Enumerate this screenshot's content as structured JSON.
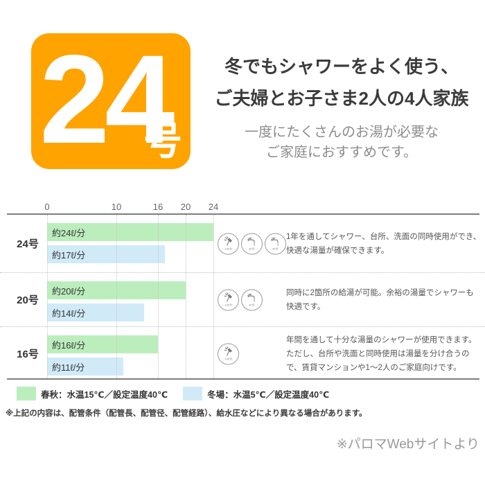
{
  "badge": {
    "number": "24",
    "suffix": "号",
    "color": "#ffa300"
  },
  "header": {
    "title_line1": "冬でもシャワーをよく使う、",
    "title_line2": "ご夫婦とお子さま2人の4人家族",
    "subtitle_line1": "一度にたくさんのお湯が必要な",
    "subtitle_line2": "ご家庭におすすめです。"
  },
  "chart_data": {
    "type": "bar",
    "orientation": "horizontal",
    "title": "",
    "xlabel": "",
    "ylabel": "",
    "x_ticks": [
      0,
      10,
      16,
      20,
      24
    ],
    "xlim": [
      0,
      24
    ],
    "unit": "ℓ/分",
    "grid": "dotted-vertical",
    "legend_position": "bottom",
    "categories": [
      "24号",
      "20号",
      "16号"
    ],
    "series": [
      {
        "name": "春秋：水温15℃／設定温度40℃",
        "color": "#bceebd",
        "values": [
          24,
          20,
          16
        ],
        "bar_labels": [
          "約24ℓ/分",
          "約20ℓ/分",
          "約16ℓ/分"
        ]
      },
      {
        "name": "冬場：水温5℃／設定温度40℃",
        "color": "#d0eaf8",
        "values": [
          17,
          14,
          11
        ],
        "bar_labels": [
          "約17ℓ/分",
          "約14ℓ/分",
          "約11ℓ/分"
        ]
      }
    ]
  },
  "rows": [
    {
      "label": "24号",
      "icons": [
        "shower-icon",
        "faucet-icon",
        "faucet-icon"
      ],
      "description": "1年を通してシャワー、台所、洗面の同時使用ができ、快適な湯量が確保できます。"
    },
    {
      "label": "20号",
      "icons": [
        "shower-icon",
        "faucet-icon"
      ],
      "description": "同時に2箇所の給湯が可能。余裕の湯量でシャワーも快適です。"
    },
    {
      "label": "16号",
      "icons": [
        "shower-icon"
      ],
      "description": "年間を通して十分な湯量のシャワーが使用できます。ただし、台所や洗面と同時使用は湯量を分け合うので、賃貸マンションや1〜2人のご家庭向けです。"
    }
  ],
  "icon_labels": {
    "shower-icon": "10ℓ/分",
    "faucet-icon": "4ℓ/分"
  },
  "legend": [
    {
      "swatch_color": "#bceebd",
      "label": "春秋：水温15℃／設定温度40℃"
    },
    {
      "swatch_color": "#d0eaf8",
      "label": "冬場：水温5℃／設定温度40℃"
    }
  ],
  "footnote": "※上記の内容は、配管条件（配管長、配管径、配管経路）、給水圧などにより異なる場合があります。",
  "credit": "※パロマWebサイトより"
}
